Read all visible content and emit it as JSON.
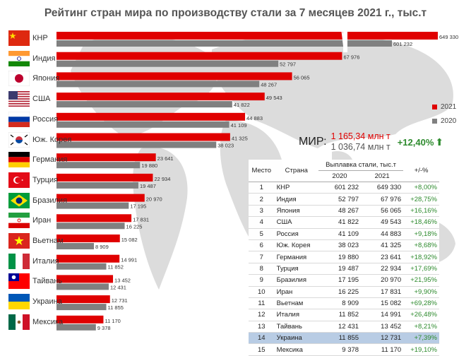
{
  "title": "Рейтинг стран мира по производству стали за 7 месяцев 2021 г., тыс.т",
  "legend": [
    {
      "label": "2021",
      "color": "#e00000"
    },
    {
      "label": "2020",
      "color": "#808080"
    }
  ],
  "world": {
    "label": "МИР:",
    "v2021": "1 165,34 млн т",
    "v2020": "1 036,74 млн т",
    "change": "+12,40%"
  },
  "table": {
    "headers": {
      "place": "Место",
      "country": "Страна",
      "output": "Выплавка стали, тыс.т",
      "y2020": "2020",
      "y2021": "2021",
      "change": "+/-%"
    },
    "highlight_color": "#b8cce4",
    "rows": [
      {
        "place": "1",
        "country": "КНР",
        "y2020": "601 232",
        "y2021": "649 330",
        "change": "+8,00%"
      },
      {
        "place": "2",
        "country": "Индия",
        "y2020": "52 797",
        "y2021": "67 976",
        "change": "+28,75%"
      },
      {
        "place": "3",
        "country": "Япония",
        "y2020": "48 267",
        "y2021": "56 065",
        "change": "+16,16%"
      },
      {
        "place": "4",
        "country": "США",
        "y2020": "41 822",
        "y2021": "49 543",
        "change": "+18,46%"
      },
      {
        "place": "5",
        "country": "Россия",
        "y2020": "41 109",
        "y2021": "44 883",
        "change": "+9,18%"
      },
      {
        "place": "6",
        "country": "Юж. Корея",
        "y2020": "38 023",
        "y2021": "41 325",
        "change": "+8,68%"
      },
      {
        "place": "7",
        "country": "Германия",
        "y2020": "19 880",
        "y2021": "23 641",
        "change": "+18,92%"
      },
      {
        "place": "8",
        "country": "Турция",
        "y2020": "19 487",
        "y2021": "22 934",
        "change": "+17,69%"
      },
      {
        "place": "9",
        "country": "Бразилия",
        "y2020": "17 195",
        "y2021": "20 970",
        "change": "+21,95%"
      },
      {
        "place": "10",
        "country": "Иран",
        "y2020": "16 225",
        "y2021": "17 831",
        "change": "+9,90%"
      },
      {
        "place": "11",
        "country": "Вьетнам",
        "y2020": "8 909",
        "y2021": "15 082",
        "change": "+69,28%"
      },
      {
        "place": "12",
        "country": "Италия",
        "y2020": "11 852",
        "y2021": "14 991",
        "change": "+26,48%"
      },
      {
        "place": "13",
        "country": "Тайвань",
        "y2020": "12 431",
        "y2021": "13 452",
        "change": "+8,21%"
      },
      {
        "place": "14",
        "country": "Украина",
        "y2020": "11 855",
        "y2021": "12 731",
        "change": "+7,39%",
        "highlight": true
      },
      {
        "place": "15",
        "country": "Мексика",
        "y2020": "9 378",
        "y2021": "11 170",
        "change": "+19,10%"
      }
    ]
  },
  "chart_data": {
    "type": "bar",
    "orientation": "horizontal",
    "axis_break": "between 67 976 and 649 330",
    "categories": [
      "КНР",
      "Индия",
      "Япония",
      "США",
      "Россия",
      "Юж. Корея",
      "Германия",
      "Турция",
      "Бразилия",
      "Иран",
      "Вьетнам",
      "Италия",
      "Тайвань",
      "Украина",
      "Мексика"
    ],
    "category_flags": [
      "china-flag-icon",
      "india-flag-icon",
      "japan-flag-icon",
      "usa-flag-icon",
      "russia-flag-icon",
      "south-korea-flag-icon",
      "germany-flag-icon",
      "turkey-flag-icon",
      "brazil-flag-icon",
      "iran-flag-icon",
      "vietnam-flag-icon",
      "italy-flag-icon",
      "taiwan-flag-icon",
      "ukraine-flag-icon",
      "mexico-flag-icon"
    ],
    "series": [
      {
        "name": "2021",
        "color": "#e00000",
        "values": [
          649330,
          67976,
          56065,
          49543,
          44883,
          41325,
          23641,
          22934,
          20970,
          17831,
          15082,
          14991,
          13452,
          12731,
          11170
        ],
        "labels": [
          "649 330",
          "67 976",
          "56 065",
          "49 543",
          "44 883",
          "41 325",
          "23 641",
          "22 934",
          "20 970",
          "17 831",
          "15 082",
          "14 991",
          "13 452",
          "12 731",
          "11 170"
        ]
      },
      {
        "name": "2020",
        "color": "#808080",
        "values": [
          601232,
          52797,
          48267,
          41822,
          41109,
          38023,
          19880,
          19487,
          17195,
          16225,
          8909,
          11852,
          12431,
          11855,
          9378
        ],
        "labels": [
          "601 232",
          "52 797",
          "48 267",
          "41 822",
          "41 109",
          "38 023",
          "19 880",
          "19 487",
          "17 195",
          "16 225",
          "8 909",
          "11 852",
          "12 431",
          "11 855",
          "9 378"
        ]
      }
    ],
    "grid": false,
    "legend_position": "right"
  }
}
